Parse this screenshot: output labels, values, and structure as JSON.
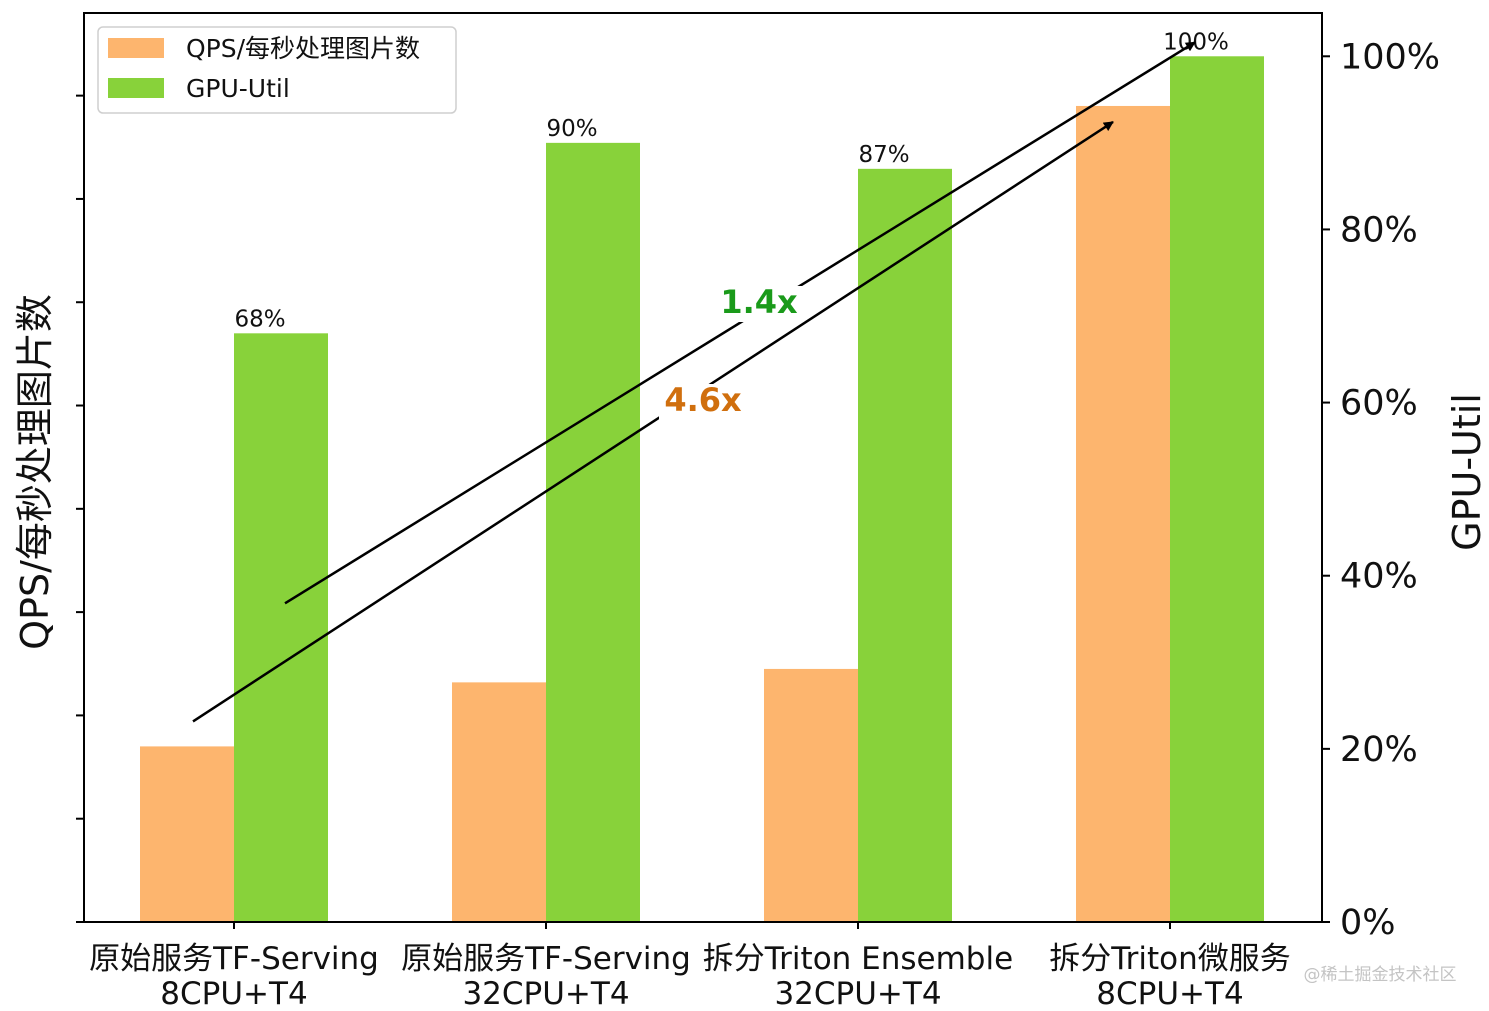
{
  "chart_data": {
    "type": "bar",
    "categories": [
      [
        "原始服务TF-Serving",
        "8CPU+T4"
      ],
      [
        "原始服务TF-Serving",
        "32CPU+T4"
      ],
      [
        "拆分Triton Ensemble",
        "32CPU+T4"
      ],
      [
        "拆分Triton微服务",
        "8CPU+T4"
      ]
    ],
    "series": [
      {
        "name": "QPS/每秒处理图片数",
        "axis": "left",
        "color": "#FDB56E",
        "values": [
          17,
          23.2,
          24.5,
          79
        ]
      },
      {
        "name": "GPU-Util",
        "axis": "right",
        "color": "#88D23A",
        "values": [
          68,
          90,
          87,
          100
        ],
        "labels": [
          "68%",
          "90%",
          "87%",
          "100%"
        ]
      }
    ],
    "left_axis": {
      "label": "QPS/每秒处理图片数",
      "ylim": [
        0,
        88
      ],
      "ticks": [
        0,
        10,
        20,
        30,
        40,
        50,
        60,
        70,
        80
      ],
      "tick_labels_visible": false
    },
    "right_axis": {
      "label": "GPU-Util",
      "ylim": [
        0,
        105
      ],
      "ticks": [
        0,
        20,
        40,
        60,
        80,
        100
      ],
      "tick_labels": [
        "0%",
        "20%",
        "40%",
        "60%",
        "80%",
        "100%"
      ]
    },
    "legend": {
      "placement": "top-left",
      "entries": [
        "QPS/每秒处理图片数",
        "GPU-Util"
      ]
    },
    "annotations": [
      {
        "text": "1.4x",
        "color": "#1a9a1a",
        "series": "GPU-Util",
        "from_category": 0,
        "to_category": 3
      },
      {
        "text": "4.6x",
        "color": "#d06f0e",
        "series": "QPS/每秒处理图片数",
        "from_category": 0,
        "to_category": 3
      }
    ]
  },
  "watermark": "@稀土掘金技术社区"
}
